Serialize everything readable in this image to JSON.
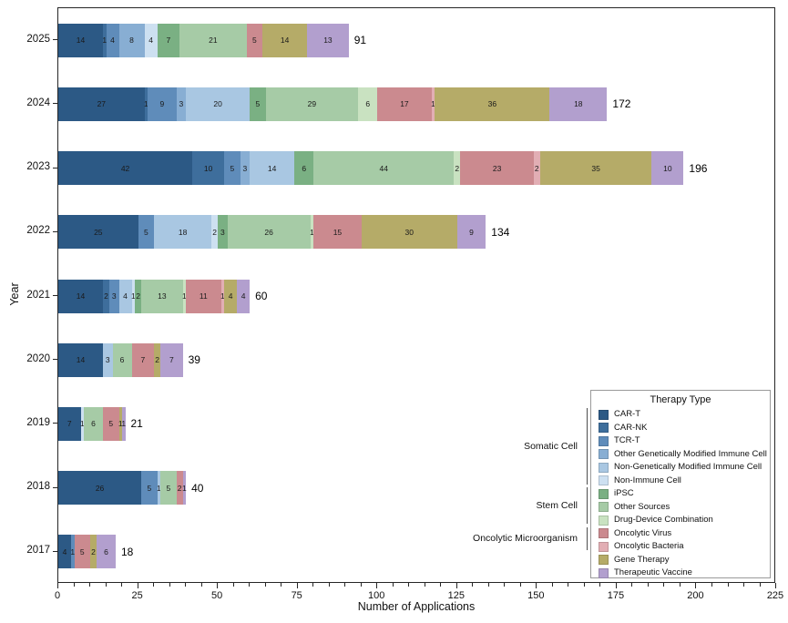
{
  "legend": {
    "title": "Therapy Type",
    "groups": [
      {
        "label": "Somatic Cell",
        "first_item": 0,
        "last_item": 5
      },
      {
        "label": "Stem Cell",
        "first_item": 6,
        "last_item": 8
      },
      {
        "label": "Oncolytic Microorganism",
        "first_item": 9,
        "last_item": 10
      }
    ]
  },
  "chart_data": {
    "type": "bar",
    "orientation": "horizontal-stacked",
    "title": "",
    "xlabel": "Number of Applications",
    "ylabel": "Year",
    "xlim": [
      0,
      225
    ],
    "x_major_ticks": [
      0,
      25,
      50,
      75,
      100,
      125,
      150,
      175,
      200,
      225
    ],
    "x_minor_tick_step": 5,
    "grid": false,
    "legend_position": "lower right",
    "categories": [
      "2025",
      "2024",
      "2023",
      "2022",
      "2021",
      "2020",
      "2019",
      "2018",
      "2017"
    ],
    "totals": [
      91,
      172,
      196,
      134,
      60,
      39,
      21,
      40,
      18
    ],
    "series": [
      {
        "name": "CAR-T",
        "color": "#2c5985",
        "group": "Somatic Cell",
        "values": [
          14,
          27,
          42,
          25,
          14,
          14,
          7,
          26,
          4
        ]
      },
      {
        "name": "CAR-NK",
        "color": "#3e6e9c",
        "group": "Somatic Cell",
        "values": [
          1,
          1,
          10,
          0,
          2,
          0,
          0,
          0,
          0
        ]
      },
      {
        "name": "TCR-T",
        "color": "#5f8cba",
        "group": "Somatic Cell",
        "values": [
          4,
          9,
          5,
          5,
          3,
          0,
          0,
          5,
          1
        ]
      },
      {
        "name": "Other Genetically Modified Immune Cell",
        "color": "#88aed3",
        "group": "Somatic Cell",
        "values": [
          8,
          3,
          3,
          0,
          0,
          0,
          0,
          0,
          0
        ]
      },
      {
        "name": "Non-Genetically Modified Immune Cell",
        "color": "#a9c7e2",
        "group": "Somatic Cell",
        "values": [
          0,
          20,
          14,
          18,
          4,
          3,
          0,
          1,
          0
        ]
      },
      {
        "name": "Non-Immune Cell",
        "color": "#cde0f1",
        "group": "Somatic Cell",
        "values": [
          4,
          0,
          0,
          2,
          1,
          0,
          1,
          0,
          0
        ]
      },
      {
        "name": "iPSC",
        "color": "#7ab083",
        "group": "Stem Cell",
        "values": [
          7,
          5,
          6,
          3,
          2,
          0,
          0,
          0,
          0
        ]
      },
      {
        "name": "Other Sources",
        "color": "#a6cba6",
        "group": "Stem Cell",
        "values": [
          21,
          29,
          44,
          26,
          13,
          6,
          6,
          5,
          0
        ]
      },
      {
        "name": "Drug-Device Combination",
        "color": "#c9e2c1",
        "group": "Stem Cell",
        "values": [
          0,
          6,
          2,
          1,
          1,
          0,
          0,
          0,
          0
        ]
      },
      {
        "name": "Oncolytic Virus",
        "color": "#cb8a8f",
        "group": "Oncolytic Microorganism",
        "values": [
          5,
          17,
          23,
          15,
          11,
          7,
          5,
          2,
          5
        ]
      },
      {
        "name": "Oncolytic Bacteria",
        "color": "#e2aeb4",
        "group": "Oncolytic Microorganism",
        "values": [
          0,
          1,
          2,
          0,
          1,
          0,
          0,
          0,
          0
        ]
      },
      {
        "name": "Gene Therapy",
        "color": "#b5ab68",
        "group": "",
        "values": [
          14,
          36,
          35,
          30,
          4,
          2,
          1,
          0,
          2
        ]
      },
      {
        "name": "Therapeutic Vaccine",
        "color": "#b29fce",
        "group": "",
        "values": [
          13,
          18,
          10,
          9,
          4,
          7,
          1,
          1,
          6
        ]
      }
    ]
  }
}
